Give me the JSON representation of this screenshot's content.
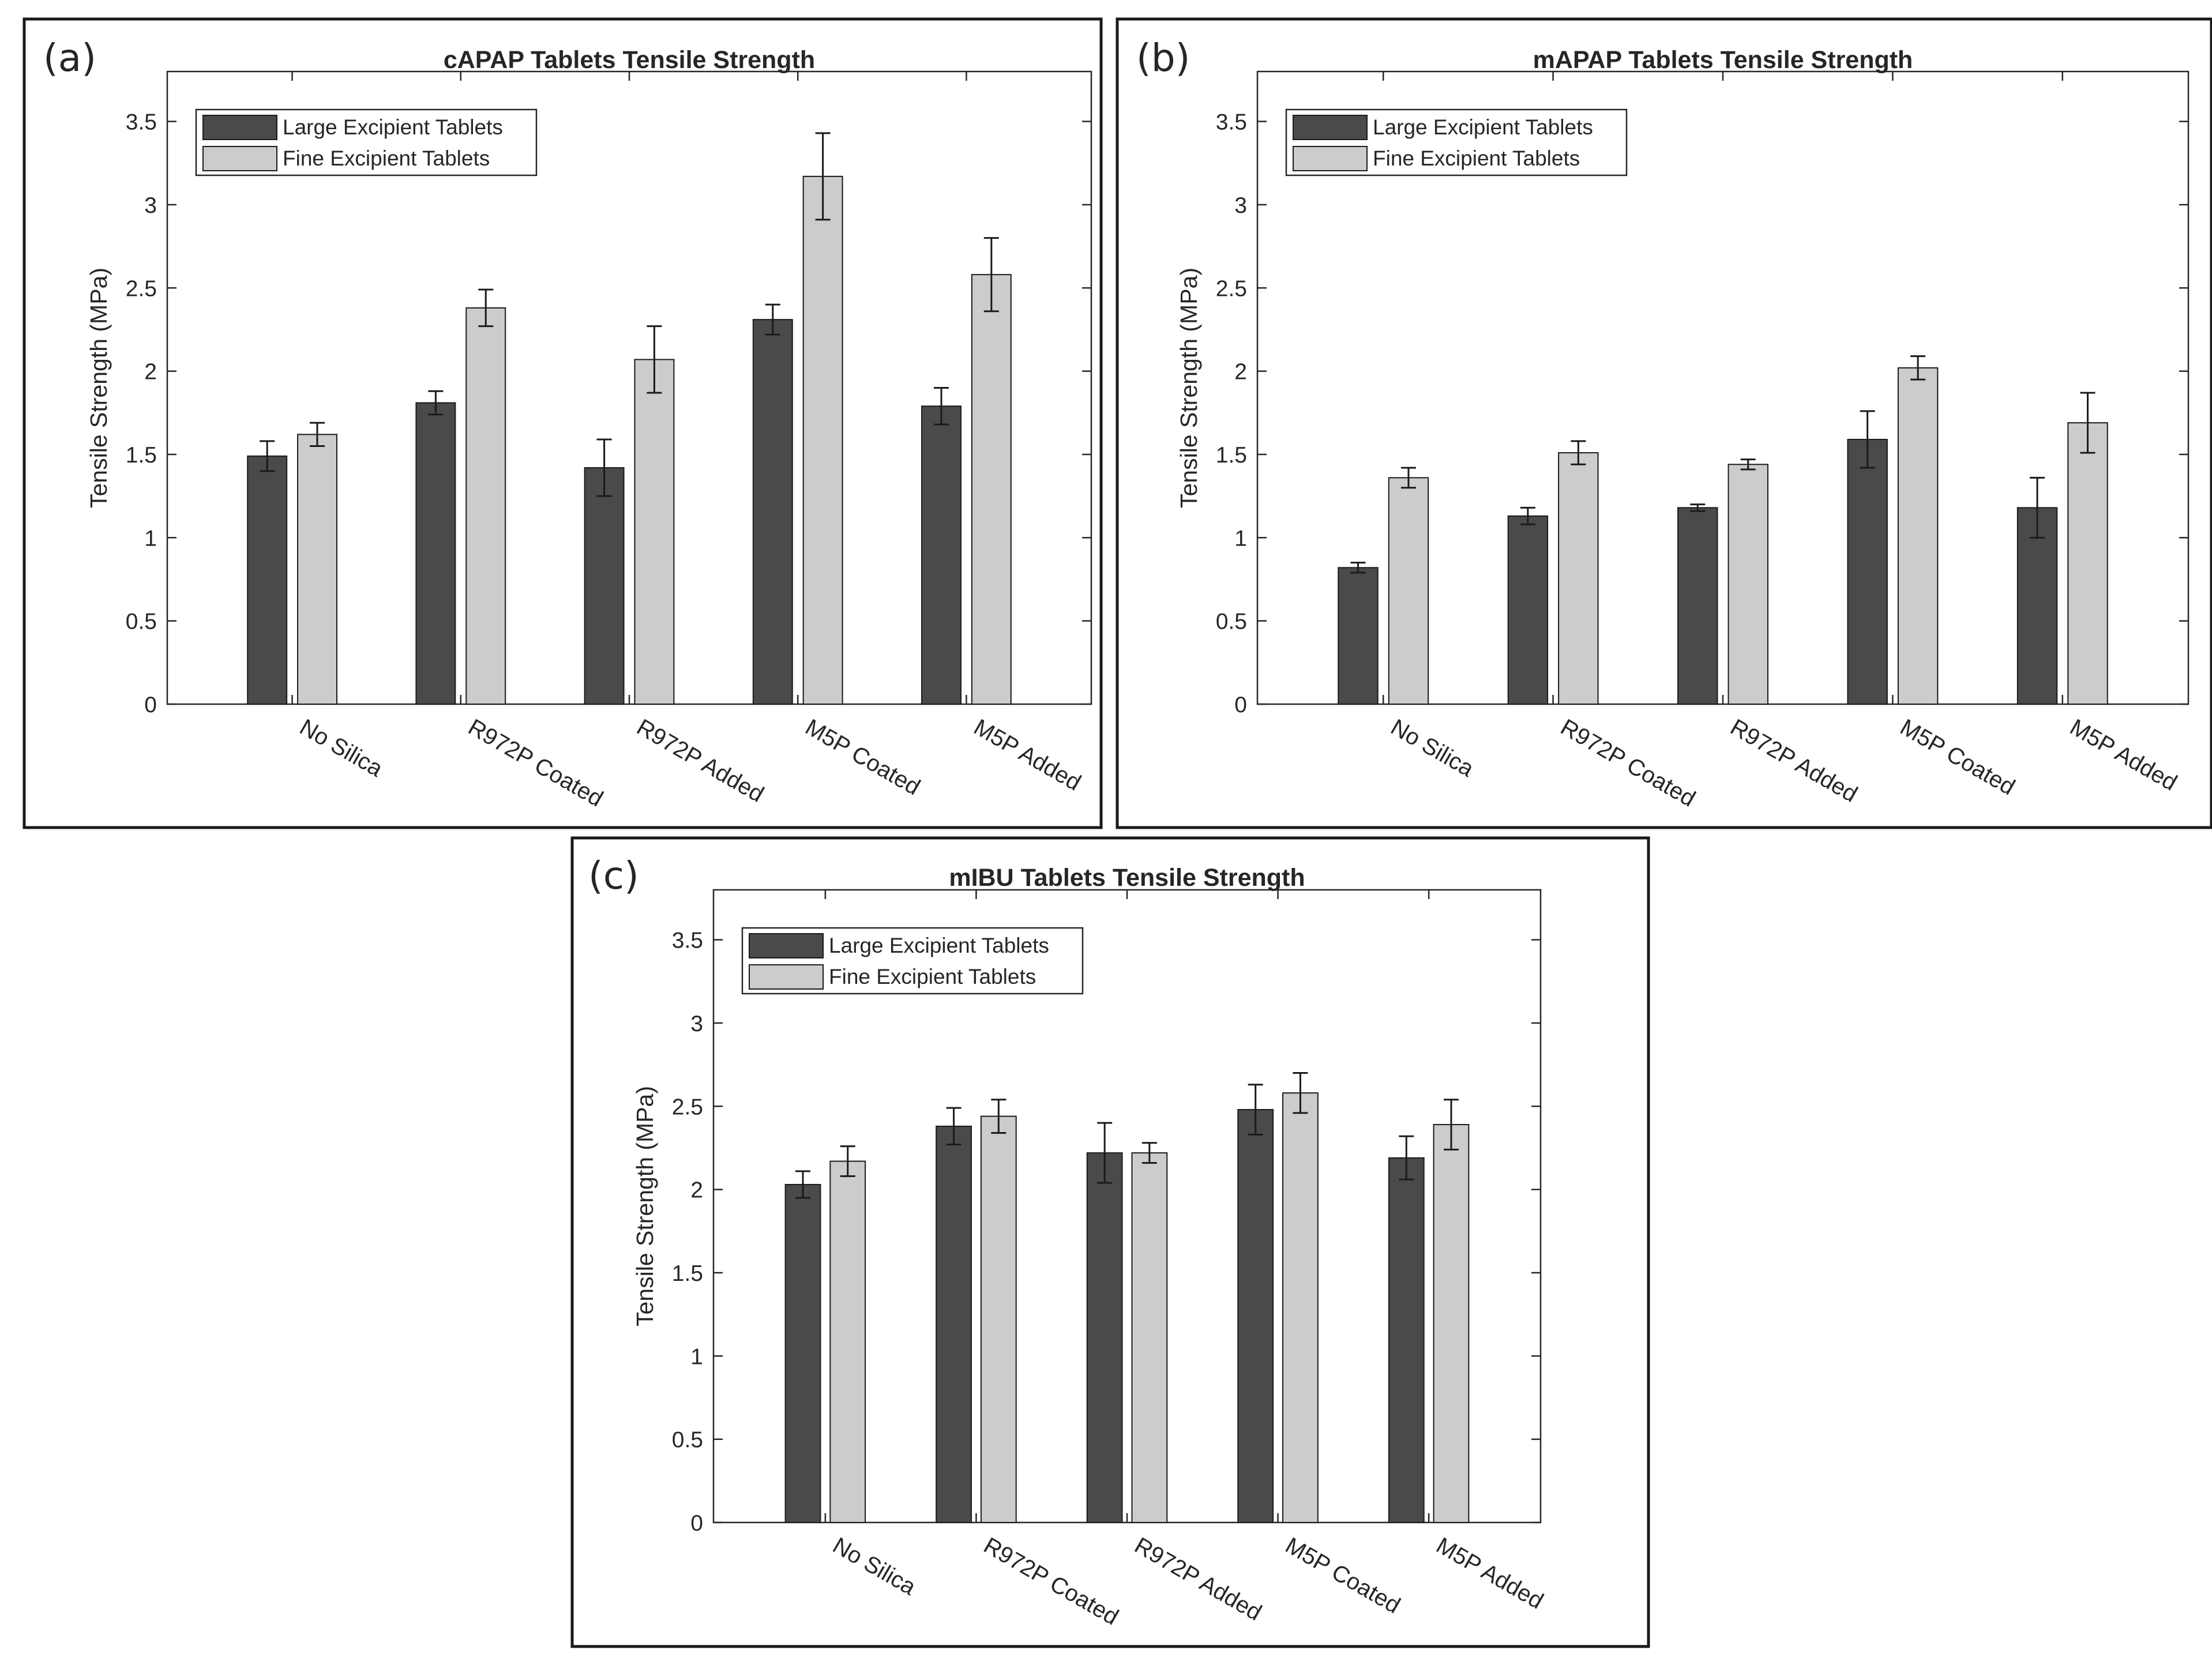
{
  "figure": {
    "colors": {
      "large": "#4a4a4a",
      "fine": "#cccccc",
      "frame": "#1a1a1a"
    },
    "legend_placement": "top-left"
  },
  "chart_data": [
    {
      "panel_label": "(a)",
      "type": "bar",
      "title": "cAPAP Tablets Tensile Strength",
      "xlabel": "",
      "ylabel": "Tensile Strength (MPa)",
      "ylim": [
        0,
        3.8
      ],
      "yticks": [
        0,
        0.5,
        1,
        1.5,
        2,
        2.5,
        3,
        3.5
      ],
      "ytick_labels": [
        "0",
        "0.5",
        "1",
        "1.5",
        "2",
        "2.5",
        "3",
        "3.5"
      ],
      "categories": [
        "No Silica",
        "R972P Coated",
        "R972P Added",
        "M5P Coated",
        "M5P Added"
      ],
      "series": [
        {
          "name": "Large Excipient Tablets",
          "values": [
            1.49,
            1.81,
            1.42,
            2.31,
            1.79
          ],
          "errors": [
            0.09,
            0.07,
            0.17,
            0.09,
            0.11
          ]
        },
        {
          "name": "Fine Excipient Tablets",
          "values": [
            1.62,
            2.38,
            2.07,
            3.17,
            2.58
          ],
          "errors": [
            0.07,
            0.11,
            0.2,
            0.26,
            0.22
          ]
        }
      ]
    },
    {
      "panel_label": "(b)",
      "type": "bar",
      "title": "mAPAP Tablets Tensile Strength",
      "xlabel": "",
      "ylabel": "Tensile Strength (MPa)",
      "ylim": [
        0,
        3.8
      ],
      "yticks": [
        0,
        0.5,
        1,
        1.5,
        2,
        2.5,
        3,
        3.5
      ],
      "ytick_labels": [
        "0",
        "0.5",
        "1",
        "1.5",
        "2",
        "2.5",
        "3",
        "3.5"
      ],
      "categories": [
        "No Silica",
        "R972P Coated",
        "R972P Added",
        "M5P Coated",
        "M5P Added"
      ],
      "series": [
        {
          "name": "Large Excipient Tablets",
          "values": [
            0.82,
            1.13,
            1.18,
            1.59,
            1.18
          ],
          "errors": [
            0.03,
            0.05,
            0.02,
            0.17,
            0.18
          ]
        },
        {
          "name": "Fine Excipient Tablets",
          "values": [
            1.36,
            1.51,
            1.44,
            2.02,
            1.69
          ],
          "errors": [
            0.06,
            0.07,
            0.03,
            0.07,
            0.18
          ]
        }
      ]
    },
    {
      "panel_label": "(c)",
      "type": "bar",
      "title": "mIBU Tablets Tensile Strength",
      "xlabel": "",
      "ylabel": "Tensile Strength (MPa)",
      "ylim": [
        0,
        3.8
      ],
      "yticks": [
        0,
        0.5,
        1,
        1.5,
        2,
        2.5,
        3,
        3.5
      ],
      "ytick_labels": [
        "0",
        "0.5",
        "1",
        "1.5",
        "2",
        "2.5",
        "3",
        "3.5"
      ],
      "categories": [
        "No Silica",
        "R972P Coated",
        "R972P Added",
        "M5P Coated",
        "M5P Added"
      ],
      "series": [
        {
          "name": "Large Excipient Tablets",
          "values": [
            2.03,
            2.38,
            2.22,
            2.48,
            2.19
          ],
          "errors": [
            0.08,
            0.11,
            0.18,
            0.15,
            0.13
          ]
        },
        {
          "name": "Fine Excipient Tablets",
          "values": [
            2.17,
            2.44,
            2.22,
            2.58,
            2.39
          ],
          "errors": [
            0.09,
            0.1,
            0.06,
            0.12,
            0.15
          ]
        }
      ]
    }
  ]
}
